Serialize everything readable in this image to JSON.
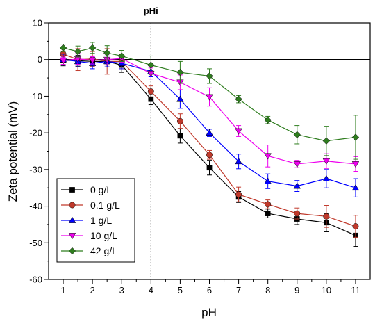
{
  "chart_data": {
    "type": "scatter",
    "xlabel": "pH",
    "ylabel": "Zeta potential (mV)",
    "xlim": [
      0.5,
      11.5
    ],
    "ylim": [
      -60,
      10
    ],
    "xticks": [
      1,
      2,
      3,
      4,
      5,
      6,
      7,
      8,
      9,
      10,
      11
    ],
    "yticks": [
      10,
      0,
      -10,
      -20,
      -30,
      -40,
      -50,
      -60
    ],
    "grid": false,
    "legend_position": "bottom-left",
    "lines_connect_points": true,
    "error_bars": true,
    "reference_lines": [
      {
        "axis": "y",
        "value": 0,
        "style": "solid"
      },
      {
        "axis": "x",
        "value": 4,
        "style": "dotted",
        "label": "pHi"
      }
    ],
    "series": [
      {
        "name": "0 g/L",
        "color": "#000000",
        "marker": "square",
        "x": [
          1,
          1.5,
          2,
          2.5,
          3,
          4,
          5,
          6,
          7,
          8,
          9,
          10,
          11
        ],
        "y": [
          -0.2,
          -0.3,
          -0.5,
          -0.5,
          -1.5,
          -10.8,
          -20.8,
          -29.5,
          -37.5,
          -42,
          -43.5,
          -44.5,
          -48
        ],
        "err": [
          1.5,
          1.5,
          1.5,
          1.5,
          2,
          1.5,
          2,
          2,
          1.5,
          1.2,
          1.5,
          2.5,
          3
        ]
      },
      {
        "name": "0.1 g/L",
        "color": "#c0392b",
        "marker": "circle",
        "x": [
          1,
          1.5,
          2,
          2.5,
          3,
          4,
          5,
          6,
          7,
          8,
          9,
          10,
          11
        ],
        "y": [
          1.5,
          0,
          0.2,
          -0.5,
          -0.5,
          -8.7,
          -16.8,
          -26,
          -36.8,
          -39.5,
          -42,
          -42.8,
          -45.5
        ],
        "err": [
          1.5,
          3,
          2,
          3.5,
          2,
          1.5,
          2,
          1.2,
          2,
          1.2,
          1.5,
          3,
          3
        ]
      },
      {
        "name": "1 g/L",
        "color": "#0000ff",
        "marker": "triangle-up",
        "x": [
          1,
          1.5,
          2,
          2.5,
          3,
          4,
          5,
          6,
          7,
          8,
          9,
          10,
          11
        ],
        "y": [
          0,
          -0.5,
          -1,
          -0.5,
          -1,
          -3.2,
          -10.8,
          -20,
          -27.8,
          -33.2,
          -34.5,
          -32.5,
          -35
        ],
        "err": [
          1.5,
          1.5,
          1.5,
          1.5,
          1.5,
          1.5,
          2.5,
          1,
          2,
          2,
          1.5,
          2.5,
          2.5
        ]
      },
      {
        "name": "10 g/L",
        "color": "#ee00ee",
        "marker": "triangle-down",
        "x": [
          1,
          1.5,
          2,
          2.5,
          3,
          4,
          5,
          6,
          7,
          8,
          9,
          10,
          11
        ],
        "y": [
          -0.3,
          0.2,
          -0.2,
          0,
          0.3,
          -3.8,
          -6.2,
          -10.2,
          -19.5,
          -26.3,
          -28.5,
          -27.7,
          -28.5
        ],
        "err": [
          1,
          1.5,
          1,
          1.5,
          1,
          1.5,
          2,
          2.5,
          1.5,
          3,
          1,
          2,
          2
        ]
      },
      {
        "name": "42 g/L",
        "color": "#2e7d1e",
        "marker": "diamond",
        "x": [
          1,
          1.5,
          2,
          2.5,
          3,
          4,
          5,
          6,
          7,
          8,
          9,
          10,
          11
        ],
        "y": [
          3.2,
          2.2,
          3.2,
          1.8,
          1,
          -1.5,
          -3.5,
          -4.5,
          -10.8,
          -16.5,
          -20.5,
          -22.2,
          -21.2
        ],
        "err": [
          1,
          1.5,
          1.5,
          2,
          1.5,
          2.5,
          3,
          2,
          1,
          1,
          2.5,
          4,
          6
        ]
      }
    ]
  }
}
